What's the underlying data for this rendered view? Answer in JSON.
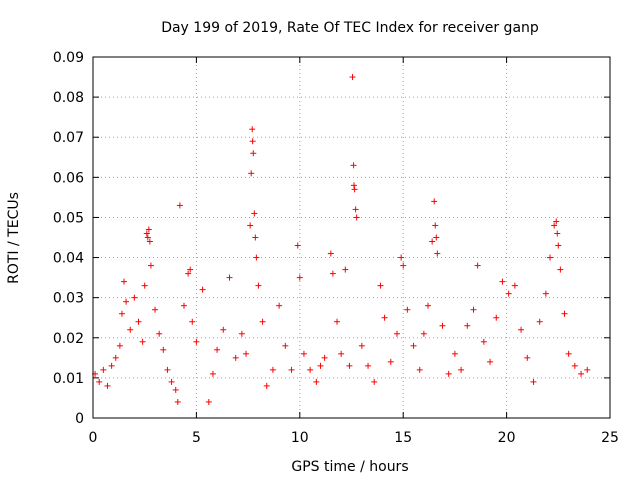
{
  "chart_data": {
    "type": "scatter",
    "title": "Day 199 of 2019, Rate Of TEC Index for receiver ganp",
    "xlabel": "GPS time / hours",
    "ylabel": "ROTI / TECUs",
    "xlim": [
      0,
      25
    ],
    "ylim": [
      0,
      0.09
    ],
    "x_ticks": [
      0,
      5,
      10,
      15,
      20,
      25
    ],
    "x_tick_labels": [
      "0",
      "5",
      "10",
      "15",
      "20",
      "25"
    ],
    "y_ticks": [
      0,
      0.01,
      0.02,
      0.03,
      0.04,
      0.05,
      0.06,
      0.07,
      0.08,
      0.09
    ],
    "y_tick_labels": [
      "0",
      "0.01",
      "0.02",
      "0.03",
      "0.04",
      "0.05",
      "0.06",
      "0.07",
      "0.08",
      "0.09"
    ],
    "grid": true,
    "marker": "plus",
    "color": "#ff0000",
    "series": [
      {
        "name": "ROTI",
        "points": [
          [
            0.1,
            0.011
          ],
          [
            0.3,
            0.009
          ],
          [
            0.5,
            0.012
          ],
          [
            0.7,
            0.008
          ],
          [
            0.9,
            0.013
          ],
          [
            1.1,
            0.015
          ],
          [
            1.3,
            0.018
          ],
          [
            1.4,
            0.026
          ],
          [
            1.5,
            0.034
          ],
          [
            1.6,
            0.029
          ],
          [
            1.8,
            0.022
          ],
          [
            2.0,
            0.03
          ],
          [
            2.2,
            0.024
          ],
          [
            2.4,
            0.019
          ],
          [
            2.5,
            0.033
          ],
          [
            2.6,
            0.046
          ],
          [
            2.65,
            0.045
          ],
          [
            2.7,
            0.047
          ],
          [
            2.75,
            0.044
          ],
          [
            2.8,
            0.038
          ],
          [
            3.0,
            0.027
          ],
          [
            3.2,
            0.021
          ],
          [
            3.4,
            0.017
          ],
          [
            3.6,
            0.012
          ],
          [
            3.8,
            0.009
          ],
          [
            4.0,
            0.007
          ],
          [
            4.1,
            0.004
          ],
          [
            4.2,
            0.053
          ],
          [
            4.4,
            0.028
          ],
          [
            4.6,
            0.036
          ],
          [
            4.7,
            0.037
          ],
          [
            4.8,
            0.024
          ],
          [
            5.0,
            0.019
          ],
          [
            5.3,
            0.032
          ],
          [
            5.6,
            0.004
          ],
          [
            5.8,
            0.011
          ],
          [
            6.0,
            0.017
          ],
          [
            6.3,
            0.022
          ],
          [
            6.6,
            0.035
          ],
          [
            6.9,
            0.015
          ],
          [
            7.2,
            0.021
          ],
          [
            7.4,
            0.016
          ],
          [
            7.6,
            0.048
          ],
          [
            7.65,
            0.061
          ],
          [
            7.7,
            0.072
          ],
          [
            7.72,
            0.069
          ],
          [
            7.75,
            0.066
          ],
          [
            7.8,
            0.051
          ],
          [
            7.85,
            0.045
          ],
          [
            7.9,
            0.04
          ],
          [
            8.0,
            0.033
          ],
          [
            8.2,
            0.024
          ],
          [
            8.4,
            0.008
          ],
          [
            8.7,
            0.012
          ],
          [
            9.0,
            0.028
          ],
          [
            9.3,
            0.018
          ],
          [
            9.6,
            0.012
          ],
          [
            9.9,
            0.043
          ],
          [
            10.0,
            0.035
          ],
          [
            10.2,
            0.016
          ],
          [
            10.5,
            0.012
          ],
          [
            10.8,
            0.009
          ],
          [
            11.0,
            0.013
          ],
          [
            11.2,
            0.015
          ],
          [
            11.5,
            0.041
          ],
          [
            11.6,
            0.036
          ],
          [
            11.8,
            0.024
          ],
          [
            12.0,
            0.016
          ],
          [
            12.2,
            0.037
          ],
          [
            12.4,
            0.013
          ],
          [
            12.55,
            0.085
          ],
          [
            12.6,
            0.063
          ],
          [
            12.62,
            0.058
          ],
          [
            12.65,
            0.057
          ],
          [
            12.7,
            0.052
          ],
          [
            12.75,
            0.05
          ],
          [
            13.0,
            0.018
          ],
          [
            13.3,
            0.013
          ],
          [
            13.6,
            0.009
          ],
          [
            13.9,
            0.033
          ],
          [
            14.1,
            0.025
          ],
          [
            14.4,
            0.014
          ],
          [
            14.7,
            0.021
          ],
          [
            14.9,
            0.04
          ],
          [
            15.0,
            0.038
          ],
          [
            15.2,
            0.027
          ],
          [
            15.5,
            0.018
          ],
          [
            15.8,
            0.012
          ],
          [
            16.0,
            0.021
          ],
          [
            16.2,
            0.028
          ],
          [
            16.4,
            0.044
          ],
          [
            16.5,
            0.054
          ],
          [
            16.55,
            0.048
          ],
          [
            16.6,
            0.045
          ],
          [
            16.65,
            0.041
          ],
          [
            16.9,
            0.023
          ],
          [
            17.2,
            0.011
          ],
          [
            17.5,
            0.016
          ],
          [
            17.8,
            0.012
          ],
          [
            18.1,
            0.023
          ],
          [
            18.4,
            0.027
          ],
          [
            18.6,
            0.038
          ],
          [
            18.9,
            0.019
          ],
          [
            19.2,
            0.014
          ],
          [
            19.5,
            0.025
          ],
          [
            19.8,
            0.034
          ],
          [
            20.1,
            0.031
          ],
          [
            20.4,
            0.033
          ],
          [
            20.7,
            0.022
          ],
          [
            21.0,
            0.015
          ],
          [
            21.3,
            0.009
          ],
          [
            21.6,
            0.024
          ],
          [
            21.9,
            0.031
          ],
          [
            22.1,
            0.04
          ],
          [
            22.3,
            0.048
          ],
          [
            22.4,
            0.049
          ],
          [
            22.45,
            0.046
          ],
          [
            22.5,
            0.043
          ],
          [
            22.6,
            0.037
          ],
          [
            22.8,
            0.026
          ],
          [
            23.0,
            0.016
          ],
          [
            23.3,
            0.013
          ],
          [
            23.6,
            0.011
          ],
          [
            23.9,
            0.012
          ]
        ]
      }
    ]
  }
}
